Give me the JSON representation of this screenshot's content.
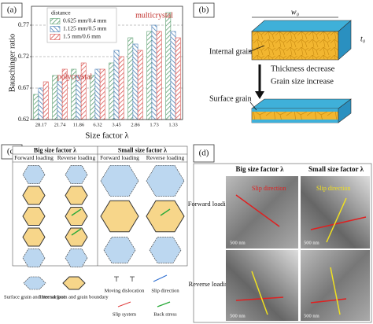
{
  "chart_data": {
    "type": "bar",
    "panel_label": "(a)",
    "xlabel": "Size factor λ",
    "ylabel": "Bauschinger ratio",
    "categories": [
      "28.17",
      "21.74",
      "11.86",
      "6.32",
      "3.45",
      "2.86",
      "1.73",
      "1.33"
    ],
    "series": [
      {
        "name": "0.625 mm/0.4 mm",
        "color": "#5a9e6f",
        "values": [
          0.66,
          0.69,
          0.7,
          0.69,
          0.71,
          0.75,
          0.76,
          0.79
        ]
      },
      {
        "name": "1.125 mm/0.5 mm",
        "color": "#4a7fb5",
        "values": [
          0.67,
          0.68,
          0.69,
          0.7,
          0.73,
          0.74,
          0.77,
          0.76
        ]
      },
      {
        "name": "1.5 mm/0.6 mm",
        "color": "#d9534f",
        "values": [
          0.68,
          0.7,
          0.71,
          0.7,
          0.72,
          0.73,
          0.76,
          0.75
        ]
      }
    ],
    "legend_title": "distance",
    "legend": "upper left",
    "annotations": [
      "polycrystal",
      "multicrystal"
    ],
    "ylim": [
      0.62,
      0.8
    ],
    "yticks": [
      0.62,
      0.67,
      0.72,
      0.77
    ],
    "grid": true
  },
  "panel_b": {
    "label": "(b)",
    "width": "w₀",
    "thickness": "t₀",
    "internal": "Internal grain",
    "step1": "Thickness decrease",
    "step2": "Grain size increase",
    "surface": "Surface grain"
  },
  "panel_c": {
    "label": "(c)",
    "big": "Big size factor λ",
    "small": "Small size factor λ",
    "sub": [
      "Forward loading",
      "Reverse loading",
      "Forward loading",
      "Reverse loading"
    ],
    "legend": [
      "Surface grain and free surface",
      "Internal grain and grain boundary",
      "Moving dislocation",
      "Slip direction",
      "Slip system",
      "Back stress"
    ]
  },
  "panel_d": {
    "label": "(d)",
    "big": "Big size factor λ",
    "small": "Small size factor λ",
    "rows": [
      "Forward loading",
      "Reverse loading"
    ],
    "slip": [
      "Slip direction",
      "Slip direction"
    ],
    "scale": [
      "500 nm",
      "500 nm",
      "500 nm",
      "500 nm"
    ]
  }
}
